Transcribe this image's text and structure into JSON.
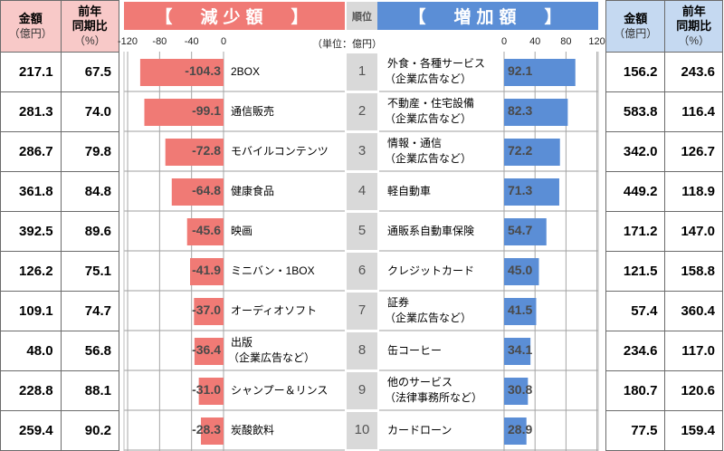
{
  "left_table": {
    "header_amount": "金額",
    "header_amount_unit": "（億円）",
    "header_yoy": "前年\n同期比",
    "header_yoy_line1": "前年",
    "header_yoy_line2": "同期比",
    "header_yoy_unit": "（%）",
    "rows": [
      {
        "amount": "217.1",
        "yoy": "67.5"
      },
      {
        "amount": "281.3",
        "yoy": "74.0"
      },
      {
        "amount": "286.7",
        "yoy": "79.8"
      },
      {
        "amount": "361.8",
        "yoy": "84.8"
      },
      {
        "amount": "392.5",
        "yoy": "89.6"
      },
      {
        "amount": "126.2",
        "yoy": "75.1"
      },
      {
        "amount": "109.1",
        "yoy": "74.7"
      },
      {
        "amount": "48.0",
        "yoy": "56.8"
      },
      {
        "amount": "228.8",
        "yoy": "88.1"
      },
      {
        "amount": "259.4",
        "yoy": "90.2"
      }
    ]
  },
  "right_table": {
    "header_amount": "金額",
    "header_amount_unit": "（億円）",
    "header_yoy_line1": "前年",
    "header_yoy_line2": "同期比",
    "header_yoy_unit": "（%）",
    "rows": [
      {
        "amount": "156.2",
        "yoy": "243.6"
      },
      {
        "amount": "583.8",
        "yoy": "116.4"
      },
      {
        "amount": "342.0",
        "yoy": "126.7"
      },
      {
        "amount": "449.2",
        "yoy": "118.9"
      },
      {
        "amount": "171.2",
        "yoy": "147.0"
      },
      {
        "amount": "121.5",
        "yoy": "158.8"
      },
      {
        "amount": "57.4",
        "yoy": "360.4"
      },
      {
        "amount": "234.6",
        "yoy": "117.0"
      },
      {
        "amount": "180.7",
        "yoy": "120.6"
      },
      {
        "amount": "77.5",
        "yoy": "159.4"
      }
    ]
  },
  "chart_data": [
    {
      "type": "bar",
      "orientation": "horizontal",
      "title": "【　減少額　】",
      "unit_label": "（単位：億円）",
      "xlim": [
        -120,
        0
      ],
      "ticks": [
        "-120",
        "-80",
        "-40",
        "0"
      ],
      "tick_values": [
        -120,
        -80,
        -40,
        0
      ],
      "color": "#f07a75",
      "categories": [
        [
          "2BOX"
        ],
        [
          "通信販売"
        ],
        [
          "モバイルコンテンツ"
        ],
        [
          "健康食品"
        ],
        [
          "映画"
        ],
        [
          "ミニバン・1BOX"
        ],
        [
          "オーディオソフト"
        ],
        [
          "出版",
          "（企業広告など）"
        ],
        [
          "シャンプー＆リンス"
        ],
        [
          "炭酸飲料"
        ]
      ],
      "values": [
        -104.3,
        -99.1,
        -72.8,
        -64.8,
        -45.6,
        -41.9,
        -37.0,
        -36.4,
        -31.0,
        -28.3
      ],
      "labels": [
        "-104.3",
        "-99.1",
        "-72.8",
        "-64.8",
        "-45.6",
        "-41.9",
        "-37.0",
        "-36.4",
        "-31.0",
        "-28.3"
      ]
    },
    {
      "type": "bar",
      "orientation": "horizontal",
      "title": "【　増加額　】",
      "xlim": [
        0,
        120
      ],
      "ticks": [
        "0",
        "40",
        "80",
        "120"
      ],
      "tick_values": [
        0,
        40,
        80,
        120
      ],
      "color": "#5b8ed6",
      "categories": [
        [
          "外食・各種サービス",
          "（企業広告など）"
        ],
        [
          "不動産・住宅設備",
          "（企業広告など）"
        ],
        [
          "情報・通信",
          "（企業広告など）"
        ],
        [
          "軽自動車"
        ],
        [
          "通販系自動車保険"
        ],
        [
          "クレジットカード"
        ],
        [
          "証券",
          "（企業広告など）"
        ],
        [
          "缶コーヒー"
        ],
        [
          "他のサービス",
          "（法律事務所など）"
        ],
        [
          "カードローン"
        ]
      ],
      "values": [
        92.1,
        82.3,
        72.2,
        71.3,
        54.7,
        45.0,
        41.5,
        34.1,
        30.8,
        28.9
      ],
      "labels": [
        "92.1",
        "82.3",
        "72.2",
        "71.3",
        "54.7",
        "45.0",
        "41.5",
        "34.1",
        "30.8",
        "28.9"
      ]
    }
  ],
  "rank": {
    "header": "順位",
    "values": [
      "1",
      "2",
      "3",
      "4",
      "5",
      "6",
      "7",
      "8",
      "9",
      "10"
    ]
  },
  "colors": {
    "decrease": "#f07a75",
    "increase": "#5b8ed6",
    "left_header_bg": "#f8c9c8",
    "right_header_bg": "#c5d9f1",
    "rank_bg": "#d9d9d9"
  }
}
